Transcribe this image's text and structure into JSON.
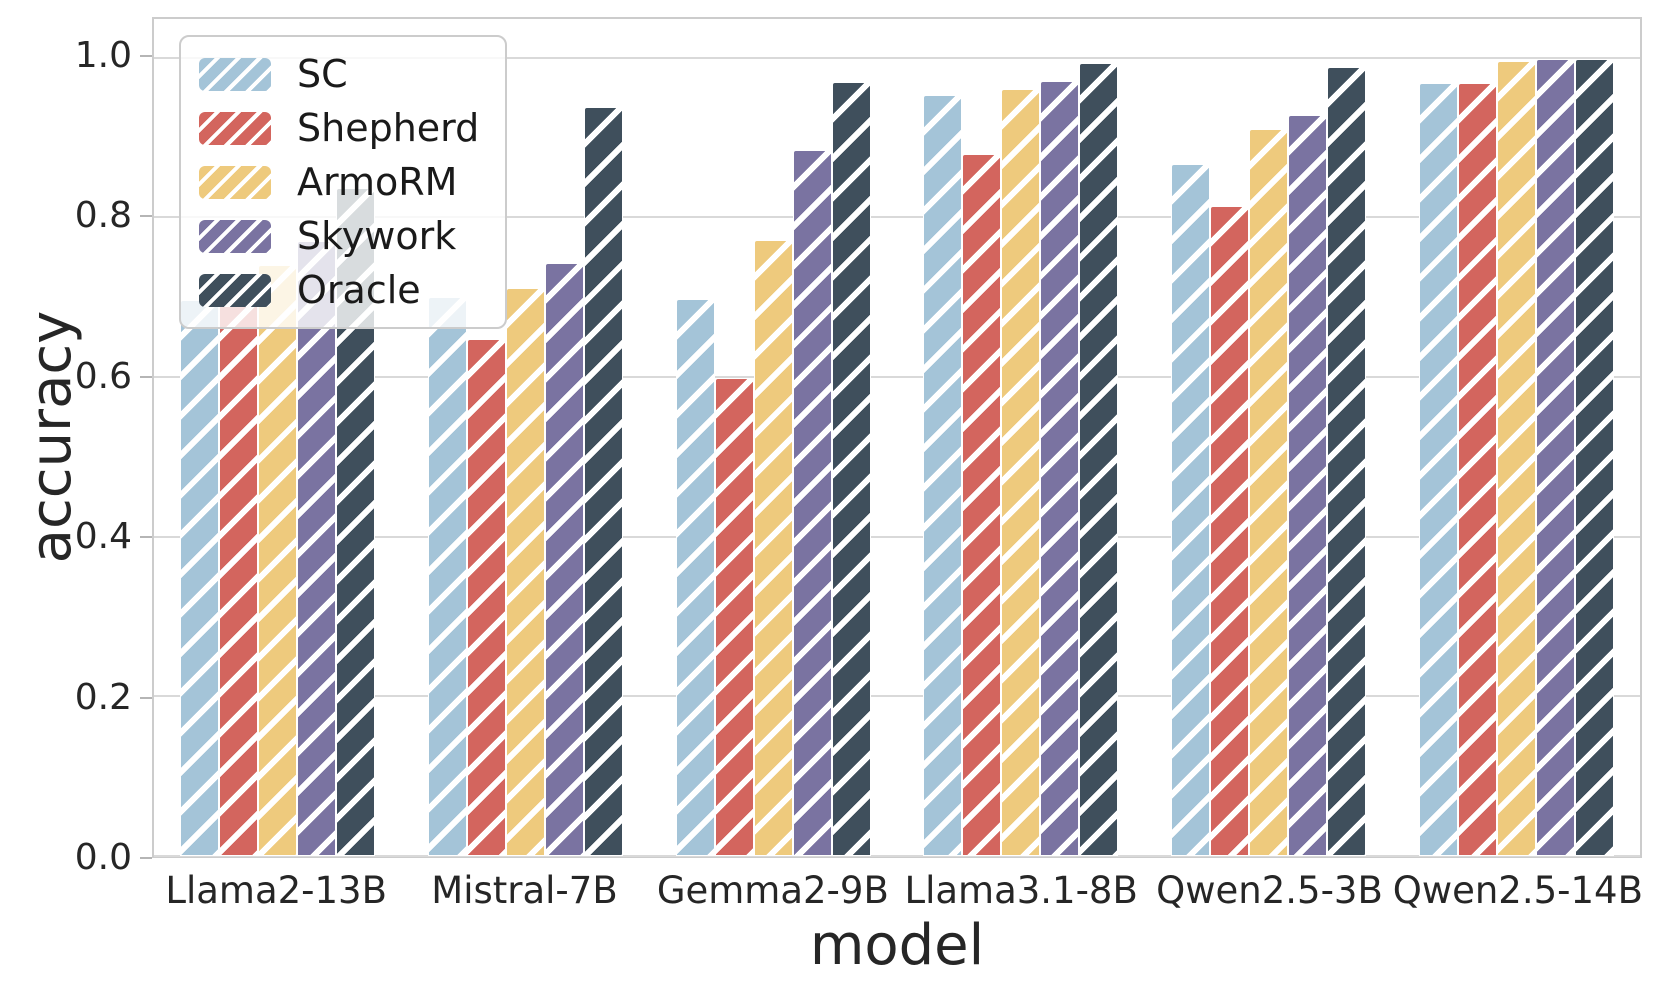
{
  "chart_data": {
    "type": "bar",
    "title": "",
    "xlabel": "model",
    "ylabel": "accuracy",
    "ylim": [
      0,
      1.0486
    ],
    "yticks": [
      0.0,
      0.2,
      0.4,
      0.6,
      0.8,
      1.0
    ],
    "ytick_labels": [
      "0.0",
      "0.2",
      "0.4",
      "0.6",
      "0.8",
      "1.0"
    ],
    "grid": true,
    "hatch": "/",
    "hatch_color": "#ffffff",
    "legend_position": "upper left",
    "legend_entries": [
      "SC",
      "Shepherd",
      "ArmoRM",
      "Skywork",
      "Oracle"
    ],
    "categories": [
      "Llama2-13B",
      "Mistral-7B",
      "Gemma2-9B",
      "Llama3.1-8B",
      "Qwen2.5-3B",
      "Qwen2.5-14B"
    ],
    "series": [
      {
        "name": "SC",
        "color": "#a4c4d8",
        "values": [
          0.697,
          0.7,
          0.698,
          0.954,
          0.867,
          0.969
        ]
      },
      {
        "name": "Shepherd",
        "color": "#d3655e",
        "values": [
          0.695,
          0.648,
          0.599,
          0.879,
          0.814,
          0.968
        ]
      },
      {
        "name": "ArmoRM",
        "color": "#eeca7d",
        "values": [
          0.741,
          0.711,
          0.772,
          0.961,
          0.911,
          0.996
        ]
      },
      {
        "name": "Skywork",
        "color": "#7a73a1",
        "values": [
          0.77,
          0.743,
          0.885,
          0.971,
          0.928,
          0.998
        ]
      },
      {
        "name": "Oracle",
        "color": "#3f4f5c",
        "values": [
          0.837,
          0.938,
          0.97,
          0.994,
          0.988,
          0.998
        ]
      }
    ]
  }
}
